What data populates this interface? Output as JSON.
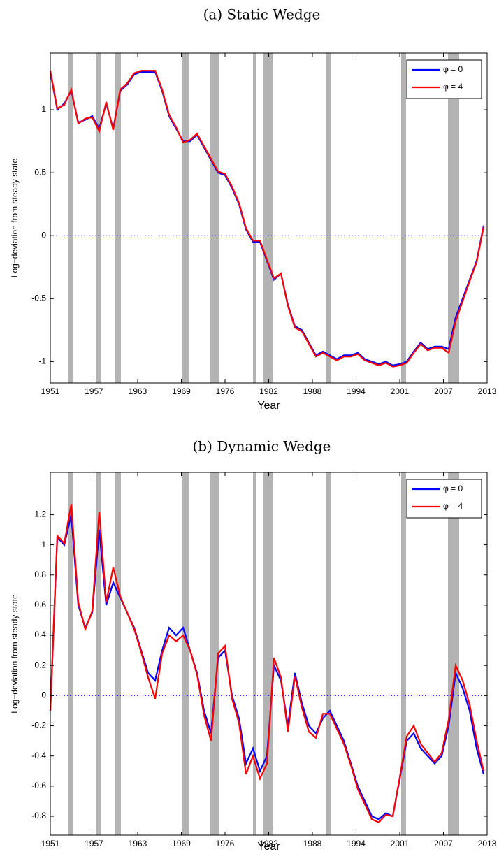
{
  "chart_data": [
    {
      "type": "line",
      "title": "(a) Static Wedge",
      "x_label": "Year",
      "y_label": "Log−deviation from steady state",
      "legend": "upper right",
      "zero_line": true,
      "recessions": [
        [
          1953.5,
          1954.25
        ],
        [
          1957.6,
          1958.3
        ],
        [
          1960.3,
          1961.1
        ],
        [
          1969.9,
          1970.9
        ],
        [
          1973.9,
          1975.2
        ],
        [
          1980.0,
          1980.5
        ],
        [
          1981.5,
          1982.9
        ],
        [
          1990.5,
          1991.2
        ],
        [
          2001.2,
          2001.9
        ],
        [
          2007.9,
          2009.5
        ]
      ],
      "recession_color": "#b3b3b3",
      "xlim": [
        1951,
        2013.5
      ],
      "xticks": [
        1951,
        {
          "value": 1957.25,
          "label": "1957"
        },
        {
          "value": 1963.5,
          "label": "1963"
        },
        {
          "value": 1969.75,
          "label": "1969"
        },
        1976,
        {
          "value": 1982.25,
          "label": "1982"
        },
        {
          "value": 1988.5,
          "label": "1988"
        },
        {
          "value": 1994.75,
          "label": "1994"
        },
        2001,
        {
          "value": 2007.25,
          "label": "2007"
        },
        {
          "value": 2013.5,
          "label": "2013"
        }
      ],
      "ylim": [
        -1.17,
        1.45
      ],
      "yticks": [
        -1,
        -0.5,
        0,
        0.5,
        1
      ],
      "x": [
        1951,
        1952,
        1953,
        1954,
        1955,
        1956,
        1957,
        1958,
        1959,
        1960,
        1961,
        1962,
        1963,
        1964,
        1965,
        1966,
        1967,
        1968,
        1969,
        1970,
        1971,
        1972,
        1973,
        1974,
        1975,
        1976,
        1977,
        1978,
        1979,
        1980,
        1981,
        1982,
        1983,
        1984,
        1985,
        1986,
        1987,
        1988,
        1989,
        1990,
        1991,
        1992,
        1993,
        1994,
        1995,
        1996,
        1997,
        1998,
        1999,
        2000,
        2001,
        2002,
        2003,
        2004,
        2005,
        2006,
        2007,
        2008,
        2009,
        2010,
        2011,
        2012,
        2013
      ],
      "series": [
        {
          "name": "φ = 0",
          "color": "#0000ff",
          "values": [
            1.3,
            1.0,
            1.05,
            1.15,
            0.9,
            0.92,
            0.95,
            0.85,
            1.05,
            0.85,
            1.15,
            1.2,
            1.28,
            1.3,
            1.3,
            1.3,
            1.15,
            0.95,
            0.85,
            0.75,
            0.75,
            0.8,
            0.7,
            0.6,
            0.5,
            0.48,
            0.38,
            0.25,
            0.05,
            -0.05,
            -0.05,
            -0.2,
            -0.35,
            -0.3,
            -0.55,
            -0.72,
            -0.75,
            -0.85,
            -0.95,
            -0.92,
            -0.95,
            -0.98,
            -0.95,
            -0.95,
            -0.93,
            -0.98,
            -1.0,
            -1.02,
            -1.0,
            -1.03,
            -1.02,
            -1.0,
            -0.92,
            -0.85,
            -0.9,
            -0.88,
            -0.88,
            -0.9,
            -0.65,
            -0.5,
            -0.35,
            -0.2,
            0.08
          ]
        },
        {
          "name": "φ = 4",
          "color": "#ff0000",
          "values": [
            1.31,
            1.01,
            1.04,
            1.16,
            0.89,
            0.93,
            0.94,
            0.83,
            1.06,
            0.84,
            1.16,
            1.21,
            1.29,
            1.31,
            1.31,
            1.31,
            1.16,
            0.96,
            0.86,
            0.74,
            0.76,
            0.81,
            0.71,
            0.61,
            0.51,
            0.49,
            0.39,
            0.26,
            0.06,
            -0.04,
            -0.04,
            -0.19,
            -0.34,
            -0.3,
            -0.56,
            -0.73,
            -0.76,
            -0.86,
            -0.96,
            -0.93,
            -0.96,
            -0.99,
            -0.96,
            -0.96,
            -0.94,
            -0.99,
            -1.01,
            -1.03,
            -1.01,
            -1.04,
            -1.03,
            -1.01,
            -0.93,
            -0.86,
            -0.91,
            -0.89,
            -0.89,
            -0.93,
            -0.68,
            -0.52,
            -0.36,
            -0.21,
            0.07
          ]
        }
      ]
    },
    {
      "type": "line",
      "title": "(b) Dynamic Wedge",
      "x_label": "Year",
      "y_label": "Log−deviation from steady state",
      "legend": "upper right",
      "zero_line": true,
      "recessions": [
        [
          1953.5,
          1954.25
        ],
        [
          1957.6,
          1958.3
        ],
        [
          1960.3,
          1961.1
        ],
        [
          1969.9,
          1970.9
        ],
        [
          1973.9,
          1975.2
        ],
        [
          1980.0,
          1980.5
        ],
        [
          1981.5,
          1982.9
        ],
        [
          1990.5,
          1991.2
        ],
        [
          2001.2,
          2001.9
        ],
        [
          2007.9,
          2009.5
        ]
      ],
      "recession_color": "#b3b3b3",
      "xlim": [
        1951,
        2013.5
      ],
      "xticks": [
        1951,
        {
          "value": 1957.25,
          "label": "1957"
        },
        {
          "value": 1963.5,
          "label": "1963"
        },
        {
          "value": 1969.75,
          "label": "1969"
        },
        1976,
        {
          "value": 1982.25,
          "label": "1982"
        },
        {
          "value": 1988.5,
          "label": "1988"
        },
        {
          "value": 1994.75,
          "label": "1994"
        },
        2001,
        {
          "value": 2007.25,
          "label": "2007"
        },
        {
          "value": 2013.5,
          "label": "2013"
        }
      ],
      "ylim": [
        -0.925,
        1.48
      ],
      "yticks": [
        -0.8,
        -0.6,
        -0.4,
        -0.2,
        0,
        0.2,
        0.4,
        0.6,
        0.8,
        1,
        1.2
      ],
      "x": [
        1951,
        1952,
        1953,
        1954,
        1955,
        1956,
        1957,
        1958,
        1959,
        1960,
        1961,
        1962,
        1963,
        1964,
        1965,
        1966,
        1967,
        1968,
        1969,
        1970,
        1971,
        1972,
        1973,
        1974,
        1975,
        1976,
        1977,
        1978,
        1979,
        1980,
        1981,
        1982,
        1983,
        1984,
        1985,
        1986,
        1987,
        1988,
        1989,
        1990,
        1991,
        1992,
        1993,
        1994,
        1995,
        1996,
        1997,
        1998,
        1999,
        2000,
        2001,
        2002,
        2003,
        2004,
        2005,
        2006,
        2007,
        2008,
        2009,
        2010,
        2011,
        2012,
        2013
      ],
      "series": [
        {
          "name": "φ = 0",
          "color": "#0000ff",
          "values": [
            -0.1,
            1.05,
            1.0,
            1.2,
            0.6,
            0.45,
            0.55,
            1.1,
            0.6,
            0.75,
            0.65,
            0.55,
            0.45,
            0.3,
            0.15,
            0.1,
            0.3,
            0.45,
            0.4,
            0.45,
            0.3,
            0.15,
            -0.1,
            -0.25,
            0.25,
            0.3,
            0.0,
            -0.15,
            -0.45,
            -0.35,
            -0.5,
            -0.4,
            0.2,
            0.1,
            -0.2,
            0.15,
            -0.05,
            -0.2,
            -0.25,
            -0.15,
            -0.1,
            -0.2,
            -0.3,
            -0.45,
            -0.6,
            -0.7,
            -0.8,
            -0.82,
            -0.78,
            -0.8,
            -0.55,
            -0.3,
            -0.25,
            -0.35,
            -0.4,
            -0.45,
            -0.4,
            -0.2,
            0.15,
            0.05,
            -0.1,
            -0.35,
            -0.52
          ]
        },
        {
          "name": "φ = 4",
          "color": "#ff0000",
          "values": [
            -0.1,
            1.06,
            1.01,
            1.27,
            0.62,
            0.44,
            0.56,
            1.22,
            0.62,
            0.85,
            0.66,
            0.55,
            0.44,
            0.29,
            0.12,
            -0.02,
            0.28,
            0.4,
            0.36,
            0.4,
            0.3,
            0.14,
            -0.13,
            -0.3,
            0.28,
            0.33,
            -0.02,
            -0.18,
            -0.52,
            -0.4,
            -0.55,
            -0.45,
            0.25,
            0.12,
            -0.24,
            0.13,
            -0.08,
            -0.24,
            -0.28,
            -0.12,
            -0.12,
            -0.22,
            -0.32,
            -0.46,
            -0.62,
            -0.72,
            -0.82,
            -0.84,
            -0.79,
            -0.8,
            -0.54,
            -0.27,
            -0.2,
            -0.32,
            -0.38,
            -0.44,
            -0.38,
            -0.16,
            0.2,
            0.1,
            -0.06,
            -0.3,
            -0.5
          ]
        }
      ]
    }
  ]
}
